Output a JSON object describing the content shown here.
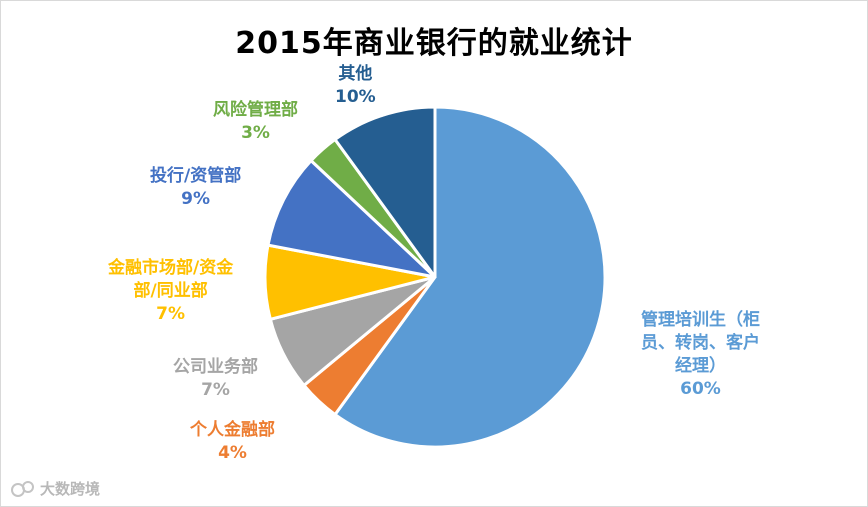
{
  "chart_data": {
    "type": "pie",
    "title": "2015年商业银行的就业统计",
    "start_angle_deg": 0,
    "direction": "clockwise",
    "slices": [
      {
        "label": "管理培训生（柜员、转岗、客户经理）",
        "label_lines": [
          "管理培训生（柜",
          "员、转岗、客户",
          "经理）"
        ],
        "value": 60,
        "value_label": "60%",
        "color": "#5b9bd5",
        "label_color": "#5b9bd5"
      },
      {
        "label": "个人金融部",
        "label_lines": [
          "个人金融部"
        ],
        "value": 4,
        "value_label": "4%",
        "color": "#ed7d31",
        "label_color": "#ed7d31"
      },
      {
        "label": "公司业务部",
        "label_lines": [
          "公司业务部"
        ],
        "value": 7,
        "value_label": "7%",
        "color": "#a5a5a5",
        "label_color": "#a5a5a5"
      },
      {
        "label": "金融市场部/资金部/同业部",
        "label_lines": [
          "金融市场部/资金",
          "部/同业部"
        ],
        "value": 7,
        "value_label": "7%",
        "color": "#ffc000",
        "label_color": "#ffc000"
      },
      {
        "label": "投行/资管部",
        "label_lines": [
          "投行/资管部"
        ],
        "value": 9,
        "value_label": "9%",
        "color": "#4472c4",
        "label_color": "#4472c4"
      },
      {
        "label": "风险管理部",
        "label_lines": [
          "风险管理部"
        ],
        "value": 3,
        "value_label": "3%",
        "color": "#70ad47",
        "label_color": "#70ad47"
      },
      {
        "label": "其他",
        "label_lines": [
          "其他"
        ],
        "value": 10,
        "value_label": "10%",
        "color": "#255e91",
        "label_color": "#255e91"
      }
    ],
    "legend": "none"
  },
  "watermark": {
    "text": "大数跨境",
    "color": "#b8b8b8"
  }
}
